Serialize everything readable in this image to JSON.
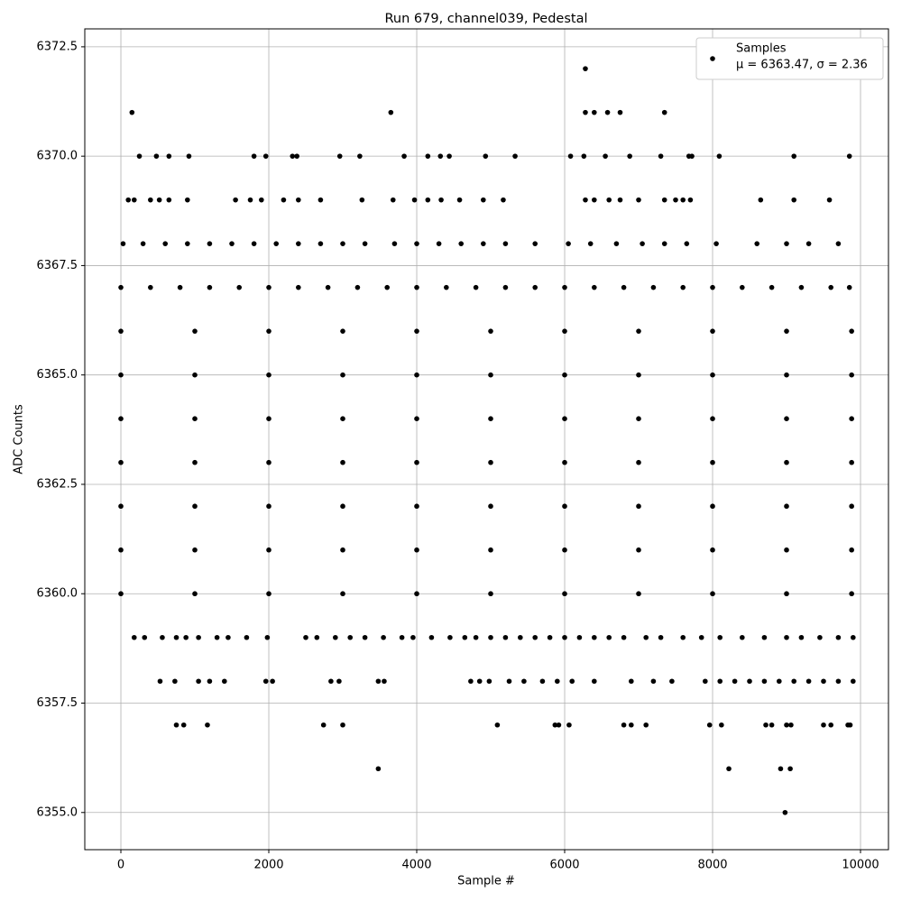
{
  "chart_data": {
    "type": "scatter",
    "title": "Run 679, channel039, Pedestal",
    "x_label": "Sample #",
    "y_label": "ADC Counts",
    "xlim": [
      -488,
      10378
    ],
    "ylim": [
      6354.15,
      6372.91
    ],
    "xticks": [
      0,
      2000,
      4000,
      6000,
      8000,
      10000
    ],
    "yticks": [
      {
        "value": 6355,
        "label": "6355.0"
      },
      6357.5,
      {
        "value": 6360,
        "label": "6360.0"
      },
      6362.5,
      {
        "value": 6365,
        "label": "6365.0"
      },
      6367.5,
      {
        "value": 6370,
        "label": "6370.0"
      },
      6372.5
    ],
    "grid": true,
    "legend": "upper right",
    "annotation": "μ = 6363.47, σ = 2.36",
    "series": [
      {
        "name": "Samples",
        "color": "#000000",
        "x": [
          150,
          3650,
          6280,
          6280,
          6400,
          6580,
          6750,
          7350,
          3480,
          8220,
          8920,
          9050,
          8980,
          750,
          850,
          1170,
          2740,
          3000,
          5090,
          5870,
          5920,
          6060,
          6800,
          6900,
          7100,
          7960,
          8120,
          8720,
          8800,
          9000,
          9060,
          9500,
          9600,
          9830,
          9860,
          250,
          480,
          650,
          920,
          1800,
          1960,
          2320,
          2380,
          2960,
          3230,
          3830,
          4150,
          4320,
          4440,
          4930,
          5330,
          6080,
          6260,
          6550,
          6880,
          7300,
          7680,
          7720,
          8090,
          9100,
          9850,
          100,
          180,
          400,
          520,
          650,
          900,
          1550,
          1750,
          1900,
          2200,
          2400,
          2700,
          3260,
          3680,
          3970,
          4150,
          4330,
          4580,
          4900,
          5170,
          6280,
          6400,
          6600,
          6750,
          7000,
          7350,
          7500,
          7600,
          7700,
          8650,
          9100,
          9580,
          530,
          730,
          1050,
          1200,
          1400,
          1960,
          2050,
          2840,
          2950,
          3480,
          3560,
          4730,
          4850,
          4980,
          5250,
          5450,
          5700,
          5900,
          6100,
          6400,
          6900,
          7200,
          7450,
          7900,
          8100,
          8300,
          8500,
          8700,
          8900,
          9100,
          9300,
          9500,
          9700,
          9900,
          180,
          320,
          560,
          750,
          880,
          1050,
          1300,
          1450,
          1700,
          1980,
          2500,
          2650,
          2900,
          3100,
          3300,
          3550,
          3800,
          3950,
          4200,
          4450,
          4650,
          4800,
          5000,
          5200,
          5400,
          5600,
          5800,
          6000,
          6200,
          6400,
          6600,
          6800,
          7100,
          7300,
          7600,
          7850,
          8100,
          8400,
          8700,
          9000,
          9200,
          9450,
          9700,
          9900,
          30,
          300,
          600,
          900,
          1200,
          1500,
          1800,
          2100,
          2400,
          2700,
          3000,
          3300,
          3700,
          4000,
          4300,
          4600,
          4900,
          5200,
          5600,
          6050,
          6350,
          6700,
          7050,
          7350,
          7650,
          8050,
          8600,
          9000,
          9300,
          9700,
          0,
          400,
          800,
          1200,
          1600,
          2000,
          2400,
          2800,
          3200,
          3600,
          4000,
          4400,
          4800,
          5200,
          5600,
          6000,
          6400,
          6800,
          7200,
          7600,
          8000,
          8400,
          8800,
          9200,
          9600,
          9850,
          0,
          1000,
          2000,
          3000,
          4000,
          5000,
          6000,
          7000,
          8000,
          9000,
          9880,
          0,
          1000,
          2000,
          3000,
          4000,
          5000,
          6000,
          7000,
          8000,
          9000,
          9880,
          0,
          1000,
          2000,
          3000,
          4000,
          5000,
          6000,
          7000,
          8000,
          9000,
          9880,
          0,
          1000,
          2000,
          3000,
          4000,
          5000,
          6000,
          7000,
          8000,
          9000,
          9880,
          0,
          1000,
          2000,
          3000,
          4000,
          5000,
          6000,
          7000,
          8000,
          9000,
          9880,
          0,
          1000,
          2000,
          3000,
          4000,
          5000,
          6000,
          7000,
          8000,
          9000,
          9880,
          0,
          1000,
          2000,
          3000,
          4000,
          5000,
          6000,
          7000,
          8000,
          9000,
          9880
        ],
        "values": [
          6371,
          6371,
          6372,
          6371,
          6371,
          6371,
          6371,
          6371,
          6356,
          6356,
          6356,
          6356,
          6355,
          6357,
          6357,
          6357,
          6357,
          6357,
          6357,
          6357,
          6357,
          6357,
          6357,
          6357,
          6357,
          6357,
          6357,
          6357,
          6357,
          6357,
          6357,
          6357,
          6357,
          6357,
          6357,
          6370,
          6370,
          6370,
          6370,
          6370,
          6370,
          6370,
          6370,
          6370,
          6370,
          6370,
          6370,
          6370,
          6370,
          6370,
          6370,
          6370,
          6370,
          6370,
          6370,
          6370,
          6370,
          6370,
          6370,
          6370,
          6370,
          6369,
          6369,
          6369,
          6369,
          6369,
          6369,
          6369,
          6369,
          6369,
          6369,
          6369,
          6369,
          6369,
          6369,
          6369,
          6369,
          6369,
          6369,
          6369,
          6369,
          6369,
          6369,
          6369,
          6369,
          6369,
          6369,
          6369,
          6369,
          6369,
          6369,
          6369,
          6369,
          6358,
          6358,
          6358,
          6358,
          6358,
          6358,
          6358,
          6358,
          6358,
          6358,
          6358,
          6358,
          6358,
          6358,
          6358,
          6358,
          6358,
          6358,
          6358,
          6358,
          6358,
          6358,
          6358,
          6358,
          6358,
          6358,
          6358,
          6358,
          6358,
          6358,
          6358,
          6358,
          6358,
          6358,
          6359,
          6359,
          6359,
          6359,
          6359,
          6359,
          6359,
          6359,
          6359,
          6359,
          6359,
          6359,
          6359,
          6359,
          6359,
          6359,
          6359,
          6359,
          6359,
          6359,
          6359,
          6359,
          6359,
          6359,
          6359,
          6359,
          6359,
          6359,
          6359,
          6359,
          6359,
          6359,
          6359,
          6359,
          6359,
          6359,
          6359,
          6359,
          6359,
          6359,
          6359,
          6359,
          6359,
          6359,
          6368,
          6368,
          6368,
          6368,
          6368,
          6368,
          6368,
          6368,
          6368,
          6368,
          6368,
          6368,
          6368,
          6368,
          6368,
          6368,
          6368,
          6368,
          6368,
          6368,
          6368,
          6368,
          6368,
          6368,
          6368,
          6368,
          6368,
          6368,
          6368,
          6368,
          6367,
          6367,
          6367,
          6367,
          6367,
          6367,
          6367,
          6367,
          6367,
          6367,
          6367,
          6367,
          6367,
          6367,
          6367,
          6367,
          6367,
          6367,
          6367,
          6367,
          6367,
          6367,
          6367,
          6367,
          6367,
          6367,
          6360,
          6360,
          6360,
          6360,
          6360,
          6360,
          6360,
          6360,
          6360,
          6360,
          6360,
          6361,
          6361,
          6361,
          6361,
          6361,
          6361,
          6361,
          6361,
          6361,
          6361,
          6361,
          6362,
          6362,
          6362,
          6362,
          6362,
          6362,
          6362,
          6362,
          6362,
          6362,
          6362,
          6363,
          6363,
          6363,
          6363,
          6363,
          6363,
          6363,
          6363,
          6363,
          6363,
          6363,
          6364,
          6364,
          6364,
          6364,
          6364,
          6364,
          6364,
          6364,
          6364,
          6364,
          6364,
          6365,
          6365,
          6365,
          6365,
          6365,
          6365,
          6365,
          6365,
          6365,
          6365,
          6365,
          6366,
          6366,
          6366,
          6366,
          6366,
          6366,
          6366,
          6366,
          6366,
          6366,
          6366
        ]
      }
    ]
  }
}
